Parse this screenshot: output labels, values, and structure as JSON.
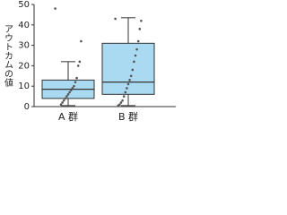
{
  "chart_data": {
    "type": "box",
    "y_label": "アウトカムの値",
    "categories": [
      "A 群",
      "B 群"
    ],
    "ylim": [
      0,
      50
    ],
    "yticks": [
      0,
      10,
      20,
      30,
      40,
      50
    ],
    "box_color": "#a9daf2",
    "point_color": "#555555",
    "series": [
      {
        "whisker_low": 0.5,
        "q1": 4,
        "median": 8.5,
        "q3": 13,
        "whisker_high": 22,
        "points": [
          48,
          32,
          22,
          20,
          14,
          12,
          10,
          9,
          8,
          7,
          6,
          5,
          4,
          3,
          2,
          1
        ]
      },
      {
        "whisker_low": 0.5,
        "q1": 6,
        "median": 12,
        "q3": 31,
        "whisker_high": 43.5,
        "points": [
          43,
          42,
          38,
          32,
          28,
          25,
          22,
          18,
          15,
          13,
          11,
          9,
          7,
          5,
          3,
          2,
          1,
          0.5
        ]
      }
    ]
  }
}
